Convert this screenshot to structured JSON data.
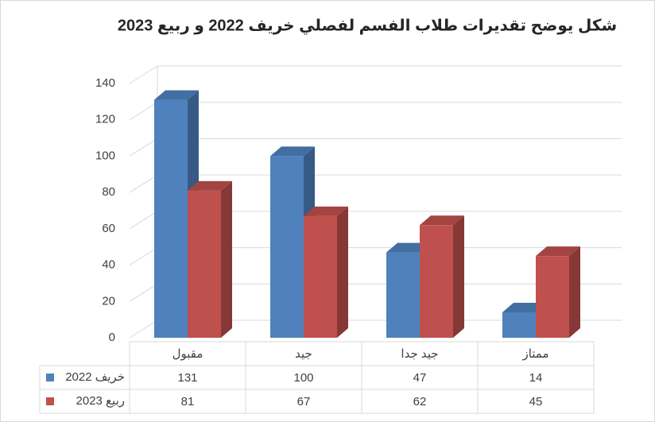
{
  "chart_data": {
    "type": "bar3d",
    "title": "شكل يوضح تقديرات طلاب الفسم لفصلي خريف 2022 و ربيع 2023",
    "categories": [
      "مقبول",
      "جيد",
      "جيد جدا",
      "ممتاز"
    ],
    "series": [
      {
        "name": "خريف 2022",
        "color": "#4f81bd",
        "values": [
          131,
          100,
          47,
          14
        ]
      },
      {
        "name": "ربيع 2023",
        "color": "#c0504d",
        "values": [
          81,
          67,
          62,
          45
        ]
      }
    ],
    "ylim": [
      0,
      140
    ],
    "yticks": [
      0,
      20,
      40,
      60,
      80,
      100,
      120,
      140
    ],
    "grid": true,
    "data_table": true
  }
}
